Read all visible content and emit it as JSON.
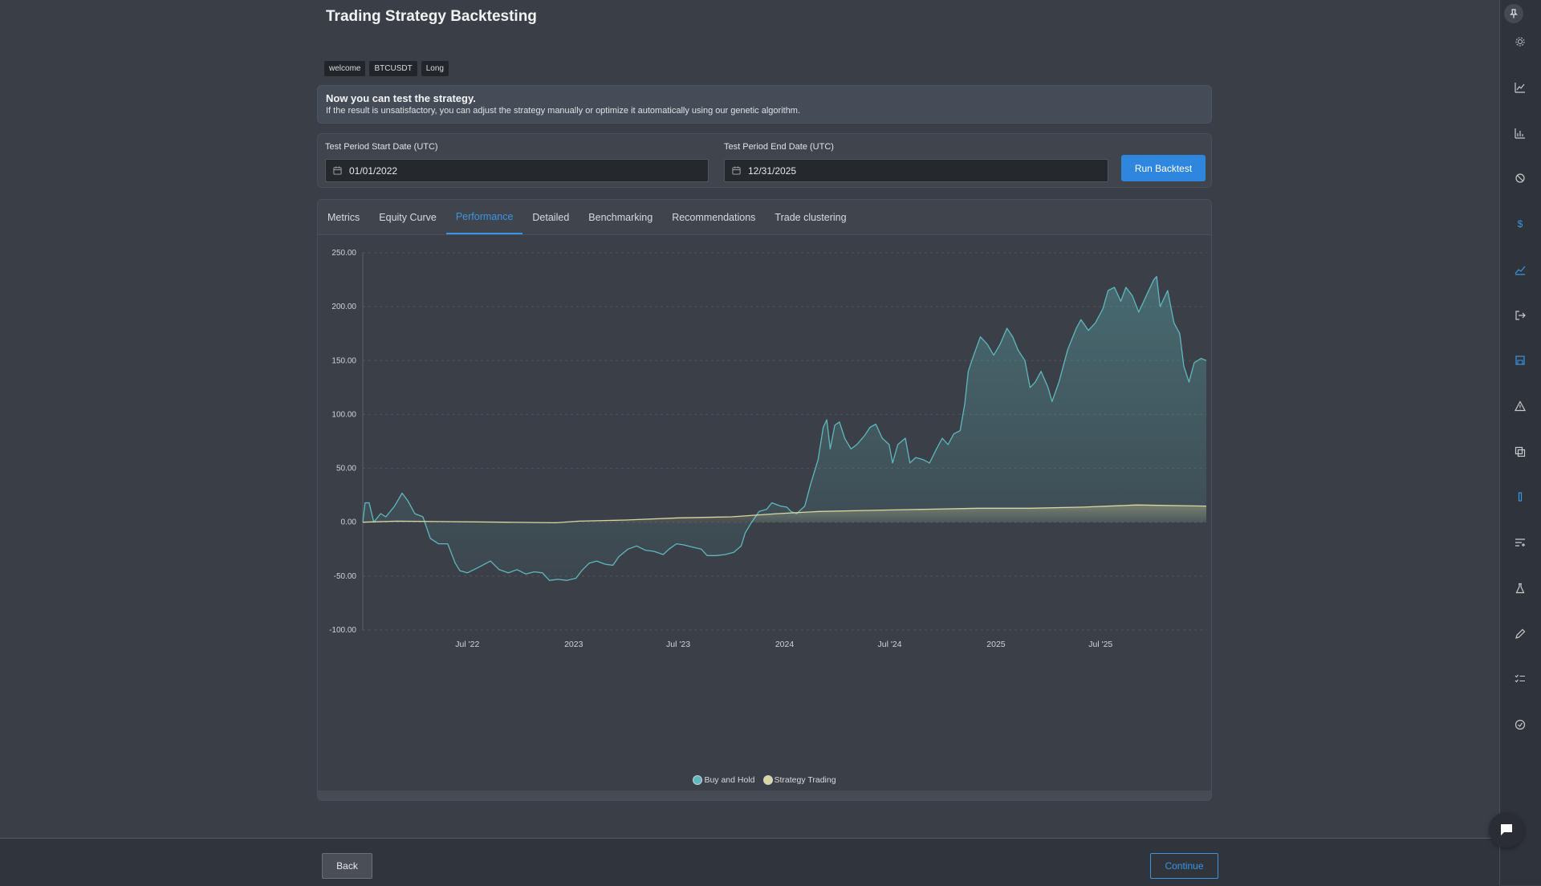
{
  "page": {
    "title": "Trading Strategy Backtesting"
  },
  "tags": [
    "welcome",
    "BTCUSDT",
    "Long"
  ],
  "banner": {
    "title": "Now you can test the strategy.",
    "text": "If the result is unsatisfactory, you can adjust the strategy manually or optimize it automatically using our genetic algorithm."
  },
  "dates": {
    "start_label": "Test Period Start Date (UTC)",
    "start_value": "01/01/2022",
    "end_label": "Test Period End Date (UTC)",
    "end_value": "12/31/2025",
    "run_label": "Run Backtest"
  },
  "tabs": [
    "Metrics",
    "Equity Curve",
    "Performance",
    "Detailed",
    "Benchmarking",
    "Recommendations",
    "Trade clustering"
  ],
  "active_tab": "Performance",
  "chart_data": {
    "type": "area",
    "x_type": "date",
    "x_range": [
      "2022-01-01",
      "2025-12-31"
    ],
    "x_ticks": [
      {
        "date": "2022-07-01",
        "label": "Jul '22"
      },
      {
        "date": "2023-01-01",
        "label": "2023"
      },
      {
        "date": "2023-07-01",
        "label": "Jul '23"
      },
      {
        "date": "2024-01-01",
        "label": "2024"
      },
      {
        "date": "2024-07-01",
        "label": "Jul '24"
      },
      {
        "date": "2025-01-01",
        "label": "2025"
      },
      {
        "date": "2025-07-01",
        "label": "Jul '25"
      }
    ],
    "y_ticks": [
      "250.00",
      "200.00",
      "150.00",
      "100.00",
      "50.00",
      "0.00",
      "-50.00",
      "-100.00"
    ],
    "ylim": [
      -100,
      250
    ],
    "grid": true,
    "legend_position": "bottom-center",
    "series": [
      {
        "name": "Buy and Hold",
        "color": "#5fb8bd",
        "points": [
          [
            "2022-01-01",
            0
          ],
          [
            "2022-01-05",
            18
          ],
          [
            "2022-01-12",
            18
          ],
          [
            "2022-01-20",
            0
          ],
          [
            "2022-02-01",
            8
          ],
          [
            "2022-02-10",
            5
          ],
          [
            "2022-02-25",
            15
          ],
          [
            "2022-03-10",
            27
          ],
          [
            "2022-03-20",
            20
          ],
          [
            "2022-04-01",
            8
          ],
          [
            "2022-04-15",
            5
          ],
          [
            "2022-04-28",
            -15
          ],
          [
            "2022-05-12",
            -20
          ],
          [
            "2022-05-28",
            -20
          ],
          [
            "2022-06-10",
            -38
          ],
          [
            "2022-06-18",
            -45
          ],
          [
            "2022-07-01",
            -47
          ],
          [
            "2022-07-20",
            -42
          ],
          [
            "2022-08-10",
            -36
          ],
          [
            "2022-08-25",
            -44
          ],
          [
            "2022-09-10",
            -47
          ],
          [
            "2022-09-25",
            -44
          ],
          [
            "2022-10-10",
            -48
          ],
          [
            "2022-10-25",
            -46
          ],
          [
            "2022-11-08",
            -47
          ],
          [
            "2022-11-20",
            -54
          ],
          [
            "2022-12-05",
            -53
          ],
          [
            "2022-12-20",
            -54
          ],
          [
            "2023-01-05",
            -52
          ],
          [
            "2023-01-15",
            -45
          ],
          [
            "2023-01-28",
            -38
          ],
          [
            "2023-02-10",
            -36
          ],
          [
            "2023-02-25",
            -39
          ],
          [
            "2023-03-10",
            -40
          ],
          [
            "2023-03-20",
            -32
          ],
          [
            "2023-04-05",
            -25
          ],
          [
            "2023-04-20",
            -22
          ],
          [
            "2023-05-05",
            -26
          ],
          [
            "2023-05-20",
            -27
          ],
          [
            "2023-06-05",
            -30
          ],
          [
            "2023-06-15",
            -25
          ],
          [
            "2023-06-28",
            -20
          ],
          [
            "2023-07-10",
            -21
          ],
          [
            "2023-07-25",
            -23
          ],
          [
            "2023-08-10",
            -25
          ],
          [
            "2023-08-20",
            -31
          ],
          [
            "2023-09-05",
            -31
          ],
          [
            "2023-09-20",
            -30
          ],
          [
            "2023-10-05",
            -28
          ],
          [
            "2023-10-18",
            -22
          ],
          [
            "2023-10-25",
            -10
          ],
          [
            "2023-11-05",
            0
          ],
          [
            "2023-11-18",
            10
          ],
          [
            "2023-12-01",
            12
          ],
          [
            "2023-12-10",
            18
          ],
          [
            "2023-12-25",
            15
          ],
          [
            "2024-01-05",
            14
          ],
          [
            "2024-01-12",
            10
          ],
          [
            "2024-01-22",
            8
          ],
          [
            "2024-02-05",
            15
          ],
          [
            "2024-02-15",
            35
          ],
          [
            "2024-02-28",
            58
          ],
          [
            "2024-03-08",
            88
          ],
          [
            "2024-03-14",
            95
          ],
          [
            "2024-03-20",
            68
          ],
          [
            "2024-03-28",
            90
          ],
          [
            "2024-04-05",
            93
          ],
          [
            "2024-04-14",
            78
          ],
          [
            "2024-04-25",
            68
          ],
          [
            "2024-05-05",
            72
          ],
          [
            "2024-05-18",
            80
          ],
          [
            "2024-05-28",
            88
          ],
          [
            "2024-06-07",
            91
          ],
          [
            "2024-06-18",
            78
          ],
          [
            "2024-06-30",
            72
          ],
          [
            "2024-07-06",
            55
          ],
          [
            "2024-07-15",
            72
          ],
          [
            "2024-07-28",
            78
          ],
          [
            "2024-08-05",
            55
          ],
          [
            "2024-08-15",
            60
          ],
          [
            "2024-08-28",
            58
          ],
          [
            "2024-09-08",
            55
          ],
          [
            "2024-09-20",
            68
          ],
          [
            "2024-09-30",
            78
          ],
          [
            "2024-10-10",
            72
          ],
          [
            "2024-10-20",
            82
          ],
          [
            "2024-10-31",
            85
          ],
          [
            "2024-11-08",
            110
          ],
          [
            "2024-11-14",
            140
          ],
          [
            "2024-11-22",
            153
          ],
          [
            "2024-12-05",
            172
          ],
          [
            "2024-12-17",
            165
          ],
          [
            "2024-12-28",
            155
          ],
          [
            "2025-01-08",
            165
          ],
          [
            "2025-01-20",
            180
          ],
          [
            "2025-01-30",
            172
          ],
          [
            "2025-02-08",
            160
          ],
          [
            "2025-02-20",
            150
          ],
          [
            "2025-03-01",
            125
          ],
          [
            "2025-03-10",
            130
          ],
          [
            "2025-03-20",
            140
          ],
          [
            "2025-04-01",
            125
          ],
          [
            "2025-04-08",
            112
          ],
          [
            "2025-04-20",
            130
          ],
          [
            "2025-05-05",
            160
          ],
          [
            "2025-05-20",
            180
          ],
          [
            "2025-05-28",
            188
          ],
          [
            "2025-06-10",
            178
          ],
          [
            "2025-06-22",
            185
          ],
          [
            "2025-07-05",
            198
          ],
          [
            "2025-07-14",
            215
          ],
          [
            "2025-07-25",
            218
          ],
          [
            "2025-08-05",
            205
          ],
          [
            "2025-08-14",
            218
          ],
          [
            "2025-08-25",
            210
          ],
          [
            "2025-09-05",
            195
          ],
          [
            "2025-09-18",
            210
          ],
          [
            "2025-10-01",
            225
          ],
          [
            "2025-10-06",
            228
          ],
          [
            "2025-10-12",
            200
          ],
          [
            "2025-10-25",
            215
          ],
          [
            "2025-11-05",
            185
          ],
          [
            "2025-11-15",
            175
          ],
          [
            "2025-11-22",
            145
          ],
          [
            "2025-12-01",
            130
          ],
          [
            "2025-12-10",
            148
          ],
          [
            "2025-12-22",
            152
          ],
          [
            "2025-12-31",
            150
          ]
        ]
      },
      {
        "name": "Strategy Trading",
        "color": "#d8d7a0",
        "points": [
          [
            "2022-01-01",
            0
          ],
          [
            "2022-03-01",
            1
          ],
          [
            "2022-06-01",
            0.5
          ],
          [
            "2022-09-01",
            0
          ],
          [
            "2022-12-01",
            -0.5
          ],
          [
            "2023-01-10",
            1
          ],
          [
            "2023-04-01",
            2
          ],
          [
            "2023-07-01",
            4
          ],
          [
            "2023-10-01",
            5
          ],
          [
            "2023-12-20",
            8
          ],
          [
            "2024-03-01",
            10
          ],
          [
            "2024-06-01",
            11
          ],
          [
            "2024-09-01",
            12
          ],
          [
            "2024-12-01",
            13
          ],
          [
            "2025-03-01",
            13
          ],
          [
            "2025-06-01",
            14
          ],
          [
            "2025-09-01",
            16
          ],
          [
            "2025-12-31",
            15
          ]
        ]
      }
    ]
  },
  "legend": {
    "buy_and_hold": "Buy and Hold",
    "strategy": "Strategy Trading"
  },
  "footer": {
    "back_label": "Back",
    "continue_label": "Continue"
  },
  "sidebar_icons": [
    "pin-icon",
    "settings-icon",
    "chart-icon",
    "bar-chart-icon",
    "ban-icon",
    "dollar-icon",
    "trend-icon",
    "logout-icon",
    "save-icon",
    "warning-icon",
    "copy-icon",
    "bar-icon",
    "list-filter-icon",
    "flask-icon",
    "pencil-icon",
    "checklist-icon",
    "check-circle-icon"
  ],
  "colors": {
    "accent": "#3a95e8",
    "buy_hold": "#5fb8bd",
    "strategy": "#d8d7a0"
  }
}
